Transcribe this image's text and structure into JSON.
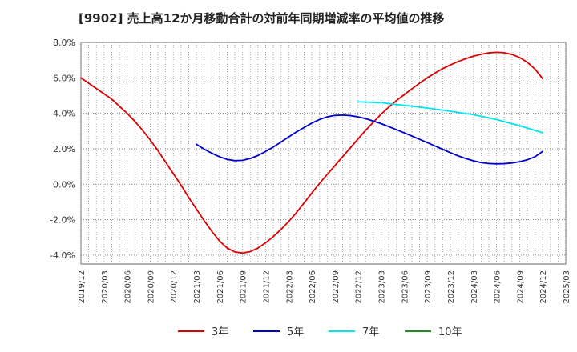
{
  "chart_data": {
    "type": "line",
    "title": "[9902]  売上高12か月移動合計の対前年同期増減率の平均値の推移",
    "xlabel": "",
    "ylabel": "",
    "x_ticks": [
      "2019/12",
      "2020/03",
      "2020/06",
      "2020/09",
      "2020/12",
      "2021/03",
      "2021/06",
      "2021/09",
      "2021/12",
      "2022/03",
      "2022/06",
      "2022/09",
      "2022/12",
      "2023/03",
      "2023/06",
      "2023/09",
      "2023/12",
      "2024/03",
      "2024/06",
      "2024/09",
      "2024/12",
      "2025/03"
    ],
    "y_ticks": [
      "8.0%",
      "6.0%",
      "4.0%",
      "2.0%",
      "0.0%",
      "-2.0%",
      "-4.0%"
    ],
    "ylim": [
      -4.5,
      8.0
    ],
    "grid": true,
    "legend_position": "bottom",
    "series": [
      {
        "name": "3年",
        "color": "#dd0000",
        "x": [
          "2019/12",
          "2020/01",
          "2020/02",
          "2020/03",
          "2020/04",
          "2020/05",
          "2020/06",
          "2020/07",
          "2020/08",
          "2020/09",
          "2020/10",
          "2020/11",
          "2020/12",
          "2021/01",
          "2021/02",
          "2021/03",
          "2021/04",
          "2021/05",
          "2021/06",
          "2021/07",
          "2021/08",
          "2021/09",
          "2021/10",
          "2021/11",
          "2021/12",
          "2022/01",
          "2022/02",
          "2022/03",
          "2022/04",
          "2022/05",
          "2022/06",
          "2022/07",
          "2022/08",
          "2022/09",
          "2022/10",
          "2022/11",
          "2022/12",
          "2023/01",
          "2023/02",
          "2023/03",
          "2023/04",
          "2023/05",
          "2023/06",
          "2023/07",
          "2023/08",
          "2023/09",
          "2023/10",
          "2023/11",
          "2023/12",
          "2024/01",
          "2024/02",
          "2024/03",
          "2024/04",
          "2024/05",
          "2024/06",
          "2024/07",
          "2024/08",
          "2024/09",
          "2024/10",
          "2024/11",
          "2024/12"
        ],
        "values": [
          6.0,
          5.7,
          5.4,
          5.1,
          4.8,
          4.4,
          4.0,
          3.55,
          3.05,
          2.5,
          1.9,
          1.25,
          0.6,
          -0.05,
          -0.75,
          -1.4,
          -2.05,
          -2.65,
          -3.2,
          -3.6,
          -3.82,
          -3.88,
          -3.8,
          -3.6,
          -3.3,
          -2.95,
          -2.55,
          -2.1,
          -1.6,
          -1.05,
          -0.5,
          0.05,
          0.55,
          1.05,
          1.55,
          2.05,
          2.55,
          3.05,
          3.5,
          3.95,
          4.35,
          4.72,
          5.05,
          5.38,
          5.7,
          6.0,
          6.27,
          6.52,
          6.73,
          6.92,
          7.08,
          7.22,
          7.33,
          7.41,
          7.44,
          7.42,
          7.32,
          7.15,
          6.88,
          6.5,
          5.95
        ]
      },
      {
        "name": "5年",
        "color": "#0000cc",
        "x": [
          "2021/03",
          "2021/04",
          "2021/05",
          "2021/06",
          "2021/07",
          "2021/08",
          "2021/09",
          "2021/10",
          "2021/11",
          "2021/12",
          "2022/01",
          "2022/02",
          "2022/03",
          "2022/04",
          "2022/05",
          "2022/06",
          "2022/07",
          "2022/08",
          "2022/09",
          "2022/10",
          "2022/11",
          "2022/12",
          "2023/01",
          "2023/02",
          "2023/03",
          "2023/04",
          "2023/05",
          "2023/06",
          "2023/07",
          "2023/08",
          "2023/09",
          "2023/10",
          "2023/11",
          "2023/12",
          "2024/01",
          "2024/02",
          "2024/03",
          "2024/04",
          "2024/05",
          "2024/06",
          "2024/07",
          "2024/08",
          "2024/09",
          "2024/10",
          "2024/11",
          "2024/12"
        ],
        "values": [
          2.25,
          1.98,
          1.75,
          1.55,
          1.4,
          1.33,
          1.35,
          1.45,
          1.62,
          1.85,
          2.1,
          2.38,
          2.67,
          2.95,
          3.2,
          3.45,
          3.65,
          3.8,
          3.88,
          3.9,
          3.87,
          3.8,
          3.7,
          3.56,
          3.42,
          3.25,
          3.08,
          2.9,
          2.72,
          2.53,
          2.35,
          2.16,
          1.97,
          1.78,
          1.6,
          1.45,
          1.32,
          1.22,
          1.17,
          1.15,
          1.16,
          1.2,
          1.27,
          1.38,
          1.55,
          1.85
        ]
      },
      {
        "name": "7年",
        "color": "#00e5ee",
        "x": [
          "2022/12",
          "2023/03",
          "2023/06",
          "2023/09",
          "2023/12",
          "2024/03",
          "2024/06",
          "2024/09",
          "2024/12"
        ],
        "values": [
          4.65,
          4.6,
          4.45,
          4.3,
          4.12,
          3.92,
          3.65,
          3.3,
          2.9
        ]
      },
      {
        "name": "10年",
        "color": "#228b22",
        "x": [],
        "values": []
      }
    ]
  }
}
